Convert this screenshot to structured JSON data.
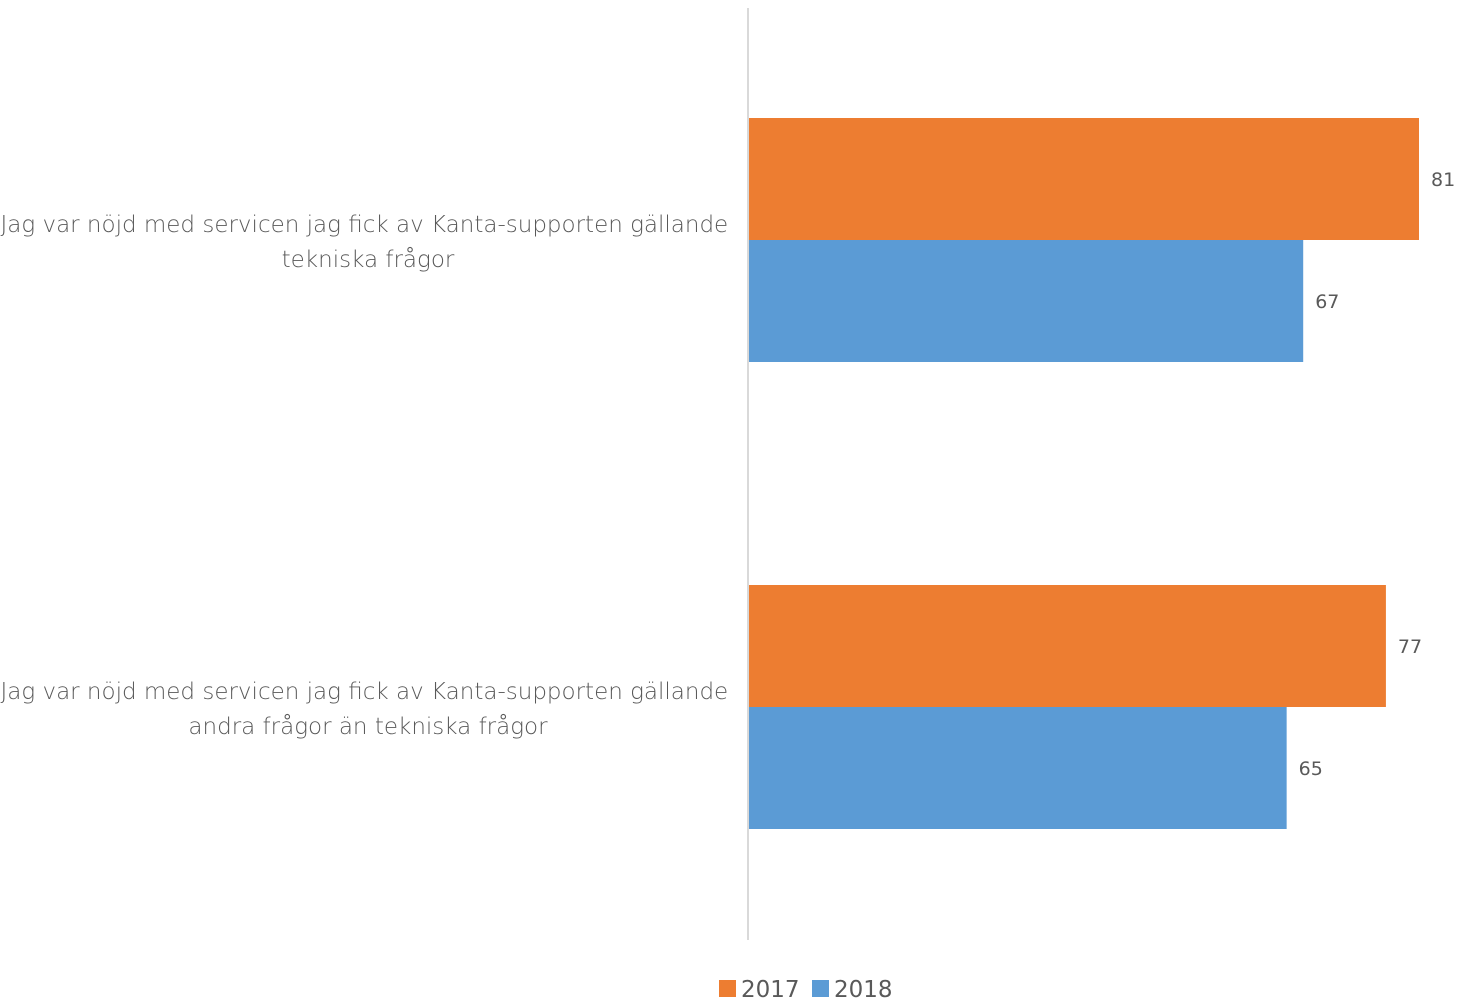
{
  "chart_data": {
    "type": "bar",
    "orientation": "horizontal",
    "categories": [
      "Jag var nöjd med servicen jag fick av Kanta-supporten gällande tekniska frågor",
      "Jag var nöjd med servicen jag fick av Kanta-supporten gällande andra frågor än tekniska frågor"
    ],
    "category_lines": [
      [
        "Jag var nöjd med servicen jag fick av Kanta-supporten gällande",
        "tekniska frågor"
      ],
      [
        "Jag var nöjd med servicen jag fick av Kanta-supporten gällande",
        "andra frågor än tekniska frågor"
      ]
    ],
    "series": [
      {
        "name": "2017",
        "color": "#ED7D31",
        "values": [
          81,
          77
        ]
      },
      {
        "name": "2018",
        "color": "#5B9BD5",
        "values": [
          67,
          65
        ]
      }
    ],
    "xlim": [
      0,
      81
    ],
    "grid": false,
    "legend_position": "bottom",
    "data_labels": true
  }
}
